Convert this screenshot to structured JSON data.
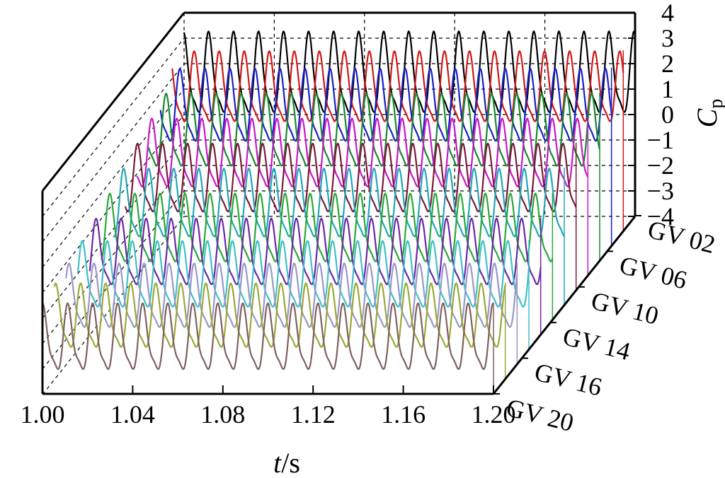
{
  "chart_data": {
    "type": "line",
    "projection": "3d-waterfall",
    "xlabel_italic": "t",
    "xlabel_unit": "/s",
    "zlabel_main": "C",
    "zlabel_sub": "p",
    "x_ticks": [
      "1.00",
      "1.04",
      "1.08",
      "1.12",
      "1.16",
      "1.20"
    ],
    "xlim": [
      1.0,
      1.2
    ],
    "z_ticks": [
      "4",
      "3",
      "2",
      "1",
      "0",
      "−1",
      "−2",
      "−3",
      "−4"
    ],
    "zlim": [
      -4,
      4
    ],
    "depth_ticks": [
      "GV 02",
      "GV 06",
      "GV 10",
      "GV 14",
      "GV 16",
      "GV 20"
    ],
    "grid": "dashed",
    "series": [
      {
        "color": "#000000",
        "vmin": -0.5,
        "vmax": 3.3,
        "phase": 0.0
      },
      {
        "color": "#d01818",
        "vmin": -0.2,
        "vmax": 3.1,
        "phase": 0.1
      },
      {
        "color": "#1820c8",
        "vmin": -0.4,
        "vmax": 3.0,
        "phase": 0.2
      },
      {
        "color": "#188830",
        "vmin": -0.8,
        "vmax": 2.6,
        "phase": 0.28
      },
      {
        "color": "#c818c8",
        "vmin": -1.0,
        "vmax": 2.2,
        "phase": 0.38
      },
      {
        "color": "#7a1a38",
        "vmin": -1.4,
        "vmax": 1.8,
        "phase": 0.48
      },
      {
        "color": "#20a8b8",
        "vmin": -1.8,
        "vmax": 1.4,
        "phase": 0.56
      },
      {
        "color": "#28a838",
        "vmin": -2.2,
        "vmax": 1.0,
        "phase": 0.64
      },
      {
        "color": "#6a28a8",
        "vmin": -2.5,
        "vmax": 0.6,
        "phase": 0.72
      },
      {
        "color": "#40c0c8",
        "vmin": -2.8,
        "vmax": 0.3,
        "phase": 0.8
      },
      {
        "color": "#9898c8",
        "vmin": -3.0,
        "vmax": 0.0,
        "phase": 0.86
      },
      {
        "color": "#9aa838",
        "vmin": -3.2,
        "vmax": -0.2,
        "phase": 0.92
      },
      {
        "color": "#806060",
        "vmin": -3.5,
        "vmax": -0.4,
        "phase": 0.97
      }
    ]
  }
}
